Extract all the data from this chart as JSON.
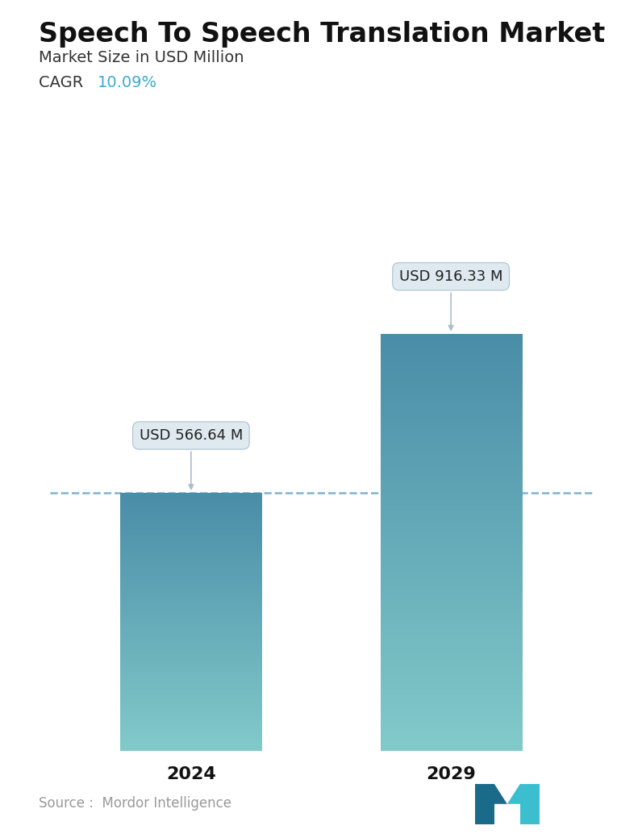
{
  "title": "Speech To Speech Translation Market",
  "subtitle": "Market Size in USD Million",
  "cagr_label": "CAGR ",
  "cagr_value": "10.09%",
  "cagr_color": "#3aabcc",
  "categories": [
    "2024",
    "2029"
  ],
  "values": [
    566.64,
    916.33
  ],
  "bar_labels": [
    "USD 566.64 M",
    "USD 916.33 M"
  ],
  "bar_color_top": "#4a8da8",
  "bar_color_bottom": "#82caca",
  "dashed_line_y": 566.64,
  "dashed_line_color": "#5599bb",
  "source_text": "Source :  Mordor Intelligence",
  "background_color": "#ffffff",
  "title_fontsize": 24,
  "subtitle_fontsize": 14,
  "cagr_fontsize": 14,
  "tick_fontsize": 16,
  "label_fontsize": 13,
  "source_fontsize": 12,
  "ylim": [
    0,
    1100
  ],
  "x_positions": [
    0.27,
    0.73
  ],
  "bar_width": 0.25
}
